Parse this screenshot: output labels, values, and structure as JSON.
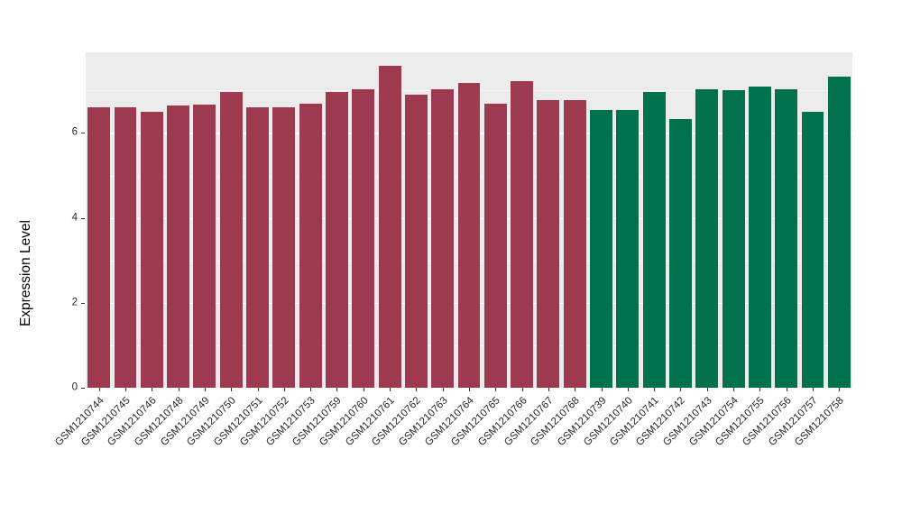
{
  "chart_data": {
    "type": "bar",
    "title": "",
    "xlabel": "",
    "ylabel": "Expression Level",
    "ylim": [
      0,
      7.9
    ],
    "yticks": [
      0,
      2,
      4,
      6
    ],
    "minor_gridlines": [
      1,
      3,
      5,
      7
    ],
    "grid": true,
    "legend": "none",
    "panel_background": "#EBEBEB",
    "gridline_color": "#FFFFFF",
    "categories": [
      "GSM1210744",
      "GSM1210745",
      "GSM1210746",
      "GSM1210748",
      "GSM1210749",
      "GSM1210750",
      "GSM1210751",
      "GSM1210752",
      "GSM1210753",
      "GSM1210759",
      "GSM1210760",
      "GSM1210761",
      "GSM1210762",
      "GSM1210763",
      "GSM1210764",
      "GSM1210765",
      "GSM1210766",
      "GSM1210767",
      "GSM1210768",
      "GSM1210739",
      "GSM1210740",
      "GSM1210741",
      "GSM1210742",
      "GSM1210743",
      "GSM1210754",
      "GSM1210755",
      "GSM1210756",
      "GSM1210757",
      "GSM1210758"
    ],
    "values": [
      6.6,
      6.6,
      6.49,
      6.64,
      6.66,
      6.96,
      6.6,
      6.6,
      6.68,
      6.96,
      7.02,
      7.59,
      6.91,
      7.04,
      7.17,
      6.68,
      7.23,
      6.77,
      6.77,
      6.55,
      6.55,
      6.96,
      6.32,
      7.04,
      7.0,
      7.1,
      7.04,
      6.49,
      7.32
    ],
    "groups": [
      "group1",
      "group1",
      "group1",
      "group1",
      "group1",
      "group1",
      "group1",
      "group1",
      "group1",
      "group1",
      "group1",
      "group1",
      "group1",
      "group1",
      "group1",
      "group1",
      "group1",
      "group1",
      "group1",
      "group2",
      "group2",
      "group2",
      "group2",
      "group2",
      "group2",
      "group2",
      "group2",
      "group2",
      "group2"
    ],
    "colors": {
      "group1": "#9E3A4F",
      "group2": "#00714C"
    }
  }
}
